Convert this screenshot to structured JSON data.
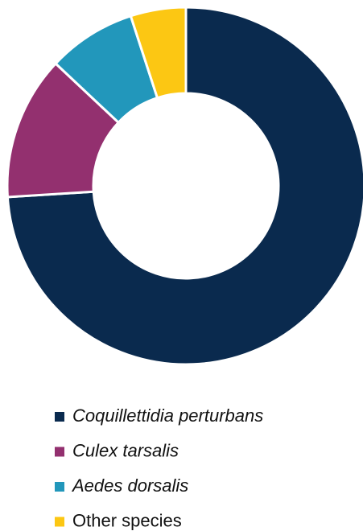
{
  "chart_data": {
    "type": "donut",
    "categories": [
      "Coquillettidia perturbans",
      "Culex tarsalis",
      "Aedes dorsalis",
      "Other species"
    ],
    "values": [
      74,
      13,
      8,
      5
    ],
    "colors": [
      "#0a2a4e",
      "#93306f",
      "#2297bb",
      "#fcc713"
    ]
  }
}
